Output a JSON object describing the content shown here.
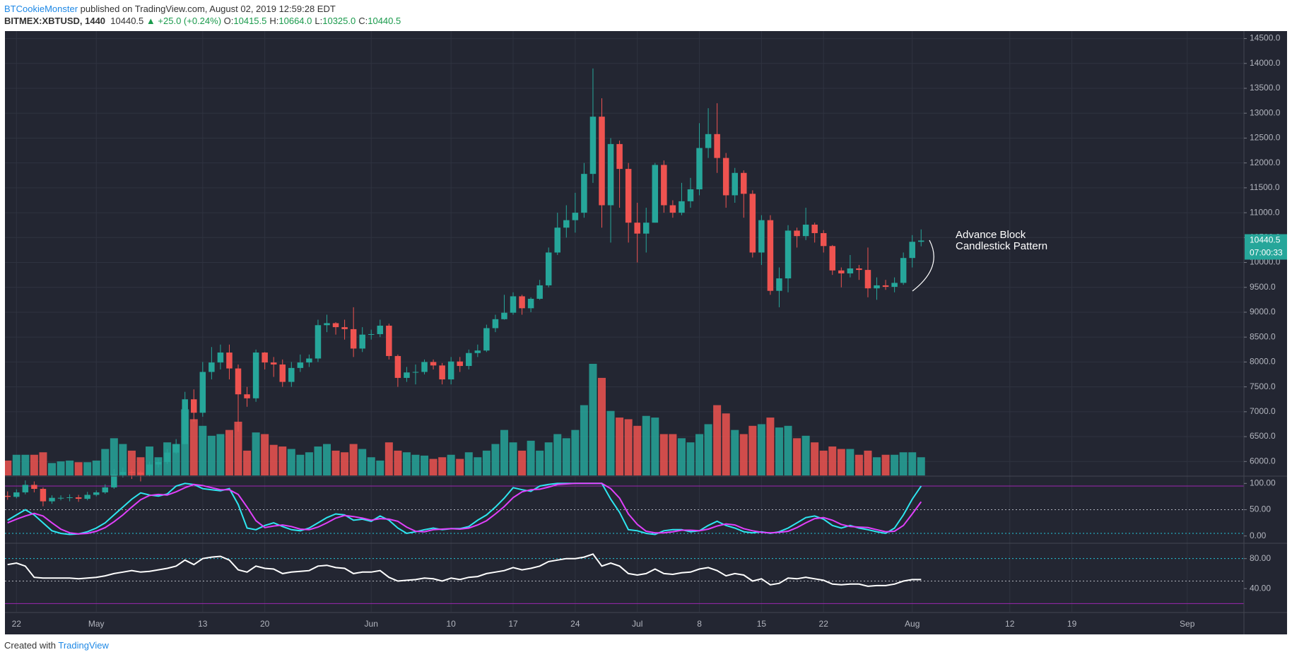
{
  "header": {
    "author": "BTCookieMonster",
    "published": "published on TradingView.com, August 02, 2019 12:59:28 EDT",
    "symbol": "BITMEX:XBTUSD, 1440",
    "last": "10440.5",
    "arrow": "▲",
    "change": "+25.0 (+0.24%)",
    "ohlc": [
      {
        "label": "O:",
        "value": "10415.5"
      },
      {
        "label": "H:",
        "value": "10664.0"
      },
      {
        "label": "L:",
        "value": "10325.0"
      },
      {
        "label": "C:",
        "value": "10440.5"
      }
    ]
  },
  "footer": {
    "created": "Created with",
    "brand": "TradingView"
  },
  "chart_data": [
    {
      "type": "candlestick",
      "annotation": [
        "Advance Block",
        "Candlestick Pattern"
      ],
      "countdown": "07:00:33",
      "colors": {
        "up": "#26a69a",
        "down": "#ef5350"
      },
      "xlim": [
        "2019-04-20",
        "2019-09-07"
      ],
      "x": [
        "2019-04-21",
        "2019-04-22",
        "2019-04-23",
        "2019-04-24",
        "2019-04-25",
        "2019-04-26",
        "2019-04-27",
        "2019-04-28",
        "2019-04-29",
        "2019-04-30",
        "2019-05-01",
        "2019-05-02",
        "2019-05-03",
        "2019-05-04",
        "2019-05-05",
        "2019-05-06",
        "2019-05-07",
        "2019-05-08",
        "2019-05-09",
        "2019-05-10",
        "2019-05-11",
        "2019-05-12",
        "2019-05-13",
        "2019-05-14",
        "2019-05-15",
        "2019-05-16",
        "2019-05-17",
        "2019-05-18",
        "2019-05-19",
        "2019-05-20",
        "2019-05-21",
        "2019-05-22",
        "2019-05-23",
        "2019-05-24",
        "2019-05-25",
        "2019-05-26",
        "2019-05-27",
        "2019-05-28",
        "2019-05-29",
        "2019-05-30",
        "2019-05-31",
        "2019-06-01",
        "2019-06-02",
        "2019-06-03",
        "2019-06-04",
        "2019-06-05",
        "2019-06-06",
        "2019-06-07",
        "2019-06-08",
        "2019-06-09",
        "2019-06-10",
        "2019-06-11",
        "2019-06-12",
        "2019-06-13",
        "2019-06-14",
        "2019-06-15",
        "2019-06-16",
        "2019-06-17",
        "2019-06-18",
        "2019-06-19",
        "2019-06-20",
        "2019-06-21",
        "2019-06-22",
        "2019-06-23",
        "2019-06-24",
        "2019-06-25",
        "2019-06-26",
        "2019-06-27",
        "2019-06-28",
        "2019-06-29",
        "2019-06-30",
        "2019-07-01",
        "2019-07-02",
        "2019-07-03",
        "2019-07-04",
        "2019-07-05",
        "2019-07-06",
        "2019-07-07",
        "2019-07-08",
        "2019-07-09",
        "2019-07-10",
        "2019-07-11",
        "2019-07-12",
        "2019-07-13",
        "2019-07-14",
        "2019-07-15",
        "2019-07-16",
        "2019-07-17",
        "2019-07-18",
        "2019-07-19",
        "2019-07-20",
        "2019-07-21",
        "2019-07-22",
        "2019-07-23",
        "2019-07-24",
        "2019-07-25",
        "2019-07-26",
        "2019-07-27",
        "2019-07-28",
        "2019-07-29",
        "2019-07-30",
        "2019-07-31",
        "2019-08-01",
        "2019-08-02"
      ],
      "open": [
        5310,
        5290,
        5380,
        5530,
        5450,
        5200,
        5270,
        5270,
        5280,
        5250,
        5330,
        5380,
        5480,
        5740,
        5790,
        5780,
        5740,
        5940,
        5990,
        6180,
        6350,
        7250,
        6980,
        7800,
        7990,
        8190,
        7870,
        7350,
        7270,
        8190,
        7990,
        7950,
        7600,
        7880,
        7990,
        8070,
        8740,
        8780,
        8700,
        8660,
        8270,
        8550,
        8560,
        8730,
        8120,
        7680,
        7790,
        7800,
        8000,
        7930,
        7650,
        8010,
        7920,
        8180,
        8230,
        8680,
        8860,
        8990,
        9320,
        9080,
        9270,
        9540,
        10200,
        10700,
        10850,
        11000,
        11780,
        12930,
        11150,
        12380,
        11880,
        10800,
        10580,
        10800,
        11960,
        11150,
        11000,
        11230,
        11470,
        12300,
        12580,
        12100,
        11350,
        11800,
        11380,
        10200,
        10850,
        9430,
        9680,
        10640,
        10530,
        10760,
        10590,
        10330,
        9840,
        9780,
        9880,
        9850,
        9480,
        9540,
        9510,
        9590,
        10090,
        10415.5
      ],
      "high": [
        5400,
        5440,
        5620,
        5600,
        5480,
        5320,
        5320,
        5340,
        5330,
        5390,
        5420,
        5540,
        5850,
        5880,
        5840,
        5820,
        6000,
        6050,
        6250,
        6450,
        7400,
        7450,
        8000,
        8300,
        8350,
        8350,
        7950,
        7500,
        8250,
        8200,
        8100,
        8050,
        8000,
        8150,
        8150,
        8850,
        8950,
        8800,
        8850,
        9100,
        8700,
        8650,
        8850,
        8770,
        8150,
        7900,
        7950,
        8050,
        8050,
        7980,
        8100,
        8100,
        8250,
        8350,
        8750,
        8950,
        9350,
        9400,
        9350,
        9300,
        9650,
        10300,
        11000,
        11150,
        11400,
        12000,
        13900,
        13300,
        12500,
        12450,
        12000,
        11200,
        11100,
        12000,
        12050,
        11250,
        11600,
        11700,
        12800,
        13100,
        13200,
        12200,
        11900,
        11850,
        11450,
        10950,
        10950,
        9900,
        10750,
        10700,
        11100,
        10800,
        10650,
        10350,
        9900,
        10150,
        9950,
        10300,
        9700,
        9650,
        9700,
        10200,
        10550,
        10664
      ],
      "low": [
        5230,
        5260,
        5340,
        5380,
        5100,
        5150,
        5220,
        5200,
        5190,
        5220,
        5300,
        5350,
        5450,
        5680,
        5650,
        5600,
        5700,
        5880,
        5950,
        6150,
        6350,
        6800,
        6900,
        7650,
        7850,
        7650,
        6600,
        7100,
        7200,
        7850,
        7700,
        7500,
        7500,
        7800,
        7900,
        8000,
        8600,
        8550,
        8450,
        8100,
        8200,
        8450,
        8500,
        8050,
        7500,
        7600,
        7550,
        7750,
        7850,
        7550,
        7550,
        7800,
        7850,
        8100,
        8200,
        8600,
        8850,
        8950,
        8950,
        9000,
        9250,
        9500,
        10150,
        10500,
        10600,
        10900,
        11600,
        10700,
        10400,
        11100,
        10400,
        10000,
        10200,
        10800,
        11000,
        10900,
        10950,
        11100,
        11350,
        12100,
        11800,
        11100,
        11200,
        10900,
        10100,
        9950,
        9350,
        9100,
        9400,
        10300,
        10450,
        10400,
        10200,
        9750,
        9500,
        9700,
        9650,
        9300,
        9250,
        9450,
        9400,
        9550,
        9900,
        10325
      ],
      "close": [
        5290,
        5380,
        5530,
        5450,
        5200,
        5270,
        5270,
        5280,
        5250,
        5330,
        5380,
        5480,
        5740,
        5790,
        5780,
        5740,
        5940,
        5990,
        6180,
        6350,
        7250,
        6980,
        7800,
        7990,
        8190,
        7870,
        7350,
        7270,
        8190,
        7990,
        7950,
        7600,
        7880,
        7990,
        8070,
        8740,
        8780,
        8700,
        8660,
        8270,
        8550,
        8560,
        8730,
        8120,
        7680,
        7790,
        7800,
        8000,
        7930,
        7650,
        8010,
        7920,
        8180,
        8230,
        8680,
        8860,
        8990,
        9320,
        9080,
        9270,
        9540,
        10200,
        10700,
        10850,
        11000,
        11780,
        12930,
        11150,
        12380,
        11880,
        10800,
        10580,
        10800,
        11960,
        11150,
        11000,
        11230,
        11470,
        12300,
        12580,
        12100,
        11350,
        11800,
        11380,
        10200,
        10850,
        9430,
        9680,
        10640,
        10530,
        10760,
        10590,
        10330,
        9840,
        9780,
        9880,
        9850,
        9480,
        9540,
        9510,
        9590,
        10090,
        10415.5,
        10440.5
      ],
      "volume": [
        18,
        25,
        25,
        25,
        28,
        15,
        17,
        18,
        16,
        16,
        18,
        32,
        45,
        38,
        30,
        22,
        35,
        22,
        40,
        38,
        80,
        68,
        60,
        48,
        50,
        55,
        65,
        30,
        52,
        50,
        37,
        35,
        32,
        25,
        28,
        35,
        38,
        30,
        28,
        38,
        32,
        22,
        18,
        40,
        30,
        28,
        25,
        24,
        20,
        22,
        25,
        20,
        28,
        22,
        30,
        38,
        55,
        40,
        30,
        42,
        30,
        40,
        50,
        45,
        55,
        85,
        135,
        118,
        78,
        70,
        68,
        60,
        72,
        70,
        50,
        50,
        45,
        40,
        50,
        62,
        85,
        75,
        55,
        50,
        60,
        62,
        70,
        58,
        60,
        45,
        48,
        40,
        30,
        35,
        32,
        32,
        25,
        30,
        22,
        25,
        25,
        28,
        28,
        22
      ],
      "ylim": [
        5720,
        14650
      ],
      "yticks": [
        {
          "value": 6000,
          "label": "6000.0"
        },
        {
          "value": 6500,
          "label": "6500.0"
        },
        {
          "value": 7000,
          "label": "7000.0"
        },
        {
          "value": 7500,
          "label": "7500.0"
        },
        {
          "value": 8000,
          "label": "8000.0"
        },
        {
          "value": 8500,
          "label": "8500.0"
        },
        {
          "value": 9000,
          "label": "9000.0"
        },
        {
          "value": 9500,
          "label": "9500.0"
        },
        {
          "value": 10000,
          "label": "10000.0"
        },
        {
          "value": 10500,
          "label": "10500.0"
        },
        {
          "value": 11000,
          "label": "11000.0"
        },
        {
          "value": 11500,
          "label": "11500.0"
        },
        {
          "value": 12000,
          "label": "12000.0"
        },
        {
          "value": 12500,
          "label": "12500.0"
        },
        {
          "value": 13000,
          "label": "13000.0"
        },
        {
          "value": 13500,
          "label": "13500.0"
        },
        {
          "value": 14000,
          "label": "14000.0"
        },
        {
          "value": 14500,
          "label": "14500.0"
        }
      ],
      "xticks": [
        {
          "value": "2019-04-22",
          "label": "22"
        },
        {
          "value": "2019-05-01",
          "label": "May"
        },
        {
          "value": "2019-05-13",
          "label": "13"
        },
        {
          "value": "2019-05-20",
          "label": "20"
        },
        {
          "value": "2019-06-01",
          "label": "Jun"
        },
        {
          "value": "2019-06-10",
          "label": "10"
        },
        {
          "value": "2019-06-17",
          "label": "17"
        },
        {
          "value": "2019-06-24",
          "label": "24"
        },
        {
          "value": "2019-07-01",
          "label": "Jul"
        },
        {
          "value": "2019-07-08",
          "label": "8"
        },
        {
          "value": "2019-07-15",
          "label": "15"
        },
        {
          "value": "2019-07-22",
          "label": "22"
        },
        {
          "value": "2019-08-01",
          "label": "Aug"
        },
        {
          "value": "2019-08-12",
          "label": "12"
        },
        {
          "value": "2019-08-19",
          "label": "19"
        },
        {
          "value": "2019-09-01",
          "label": "Sep"
        }
      ],
      "grid": true
    },
    {
      "type": "line",
      "ylim": [
        -12.5,
        112.5
      ],
      "yticks": [
        {
          "value": 0,
          "label": "0.00"
        },
        {
          "value": 50,
          "label": "50.00"
        },
        {
          "value": 100,
          "label": "100.00"
        }
      ],
      "bands": [
        {
          "value": 95,
          "color": "#9c27b0",
          "dash": false
        },
        {
          "value": 50,
          "color": "#b2b5be",
          "dash": true
        },
        {
          "value": 5,
          "color": "#26c6da",
          "dash": true
        }
      ],
      "series": [
        {
          "color": "#2ee6f0",
          "values": [
            30,
            40,
            50,
            40,
            25,
            10,
            5,
            3,
            4,
            8,
            15,
            25,
            40,
            55,
            70,
            82,
            78,
            76,
            80,
            95,
            100,
            98,
            90,
            88,
            86,
            90,
            60,
            15,
            12,
            20,
            25,
            18,
            12,
            10,
            15,
            25,
            35,
            42,
            40,
            30,
            32,
            28,
            38,
            30,
            15,
            5,
            8,
            12,
            15,
            12,
            14,
            14,
            18,
            30,
            40,
            55,
            72,
            92,
            88,
            85,
            95,
            98,
            100,
            100,
            100,
            100,
            100,
            100,
            70,
            45,
            12,
            10,
            5,
            3,
            10,
            12,
            12,
            8,
            10,
            20,
            28,
            20,
            15,
            8,
            6,
            8,
            5,
            8,
            15,
            25,
            35,
            38,
            32,
            20,
            15,
            20,
            15,
            12,
            8,
            5,
            15,
            40,
            70,
            95
          ]
        },
        {
          "color": "#e040fb",
          "values": [
            25,
            32,
            38,
            43,
            38,
            25,
            13,
            6,
            4,
            5,
            9,
            16,
            27,
            40,
            55,
            69,
            77,
            79,
            78,
            84,
            92,
            98,
            96,
            92,
            88,
            88,
            79,
            55,
            29,
            16,
            19,
            21,
            18,
            13,
            12,
            17,
            25,
            34,
            39,
            37,
            34,
            30,
            33,
            32,
            28,
            17,
            9,
            8,
            12,
            13,
            14,
            13,
            15,
            21,
            29,
            42,
            56,
            73,
            84,
            88,
            89,
            93,
            98,
            99,
            100,
            100,
            100,
            100,
            90,
            72,
            42,
            22,
            9,
            6,
            6,
            8,
            11,
            11,
            10,
            13,
            19,
            23,
            21,
            14,
            10,
            7,
            6,
            7,
            9,
            16,
            25,
            33,
            35,
            30,
            22,
            18,
            17,
            16,
            12,
            8,
            9,
            20,
            42,
            65
          ]
        }
      ]
    },
    {
      "type": "line",
      "ylim": [
        9,
        99.5
      ],
      "yticks": [
        {
          "value": 40,
          "label": "40.00"
        },
        {
          "value": 80,
          "label": "80.00"
        }
      ],
      "bands": [
        {
          "value": 80,
          "color": "#26c6da",
          "dash": true
        },
        {
          "value": 50,
          "color": "#b2b5be",
          "dash": true
        },
        {
          "value": 20,
          "color": "#9c27b0",
          "dash": false
        }
      ],
      "series": [
        {
          "color": "#ffffff",
          "values": [
            72,
            74,
            70,
            55,
            54,
            54,
            54,
            54,
            53,
            54,
            55,
            57,
            60,
            62,
            64,
            62,
            63,
            65,
            67,
            70,
            78,
            72,
            80,
            82,
            83,
            78,
            65,
            62,
            70,
            67,
            66,
            60,
            62,
            63,
            64,
            70,
            71,
            68,
            67,
            60,
            62,
            62,
            64,
            55,
            50,
            51,
            52,
            54,
            53,
            50,
            54,
            52,
            55,
            56,
            60,
            62,
            64,
            68,
            65,
            67,
            70,
            76,
            78,
            80,
            80,
            82,
            86,
            70,
            74,
            70,
            60,
            58,
            60,
            66,
            60,
            59,
            61,
            62,
            66,
            68,
            64,
            57,
            60,
            58,
            50,
            53,
            45,
            47,
            54,
            53,
            55,
            53,
            51,
            46,
            45,
            46,
            46,
            43,
            44,
            44,
            46,
            50,
            52,
            52
          ]
        }
      ]
    }
  ]
}
